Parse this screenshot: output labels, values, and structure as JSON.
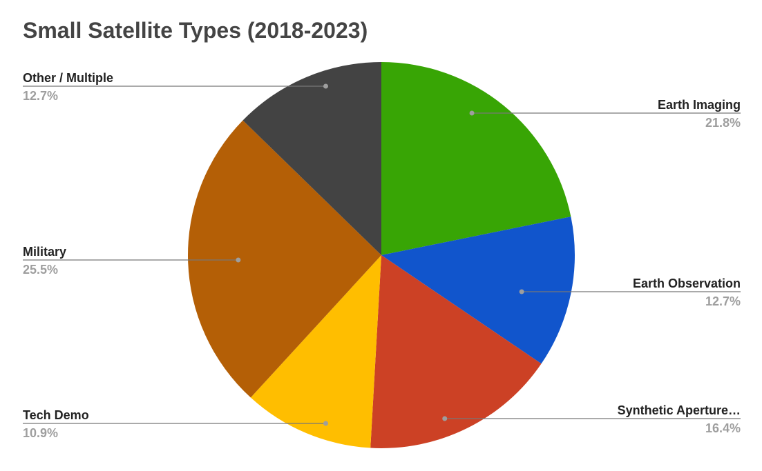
{
  "chart_data": {
    "type": "pie",
    "title": "Small Satellite Types (2018-2023)",
    "slices": [
      {
        "label": "Earth Imaging",
        "percent_label": "21.8%",
        "value": 21.8,
        "color": "#38a505"
      },
      {
        "label": "Earth Observation",
        "percent_label": "12.7%",
        "value": 12.7,
        "color": "#1155cc"
      },
      {
        "label": "Synthetic Aperture…",
        "percent_label": "16.4%",
        "value": 16.4,
        "color": "#cc4125"
      },
      {
        "label": "Tech Demo",
        "percent_label": "10.9%",
        "value": 10.9,
        "color": "#ffbe00"
      },
      {
        "label": "Military",
        "percent_label": "25.5%",
        "value": 25.5,
        "color": "#b45f06"
      },
      {
        "label": "Other / Multiple",
        "percent_label": "12.7%",
        "value": 12.7,
        "color": "#434343"
      }
    ],
    "start_angle": "12 o'clock",
    "direction": "clockwise",
    "legend": "callout labels"
  }
}
